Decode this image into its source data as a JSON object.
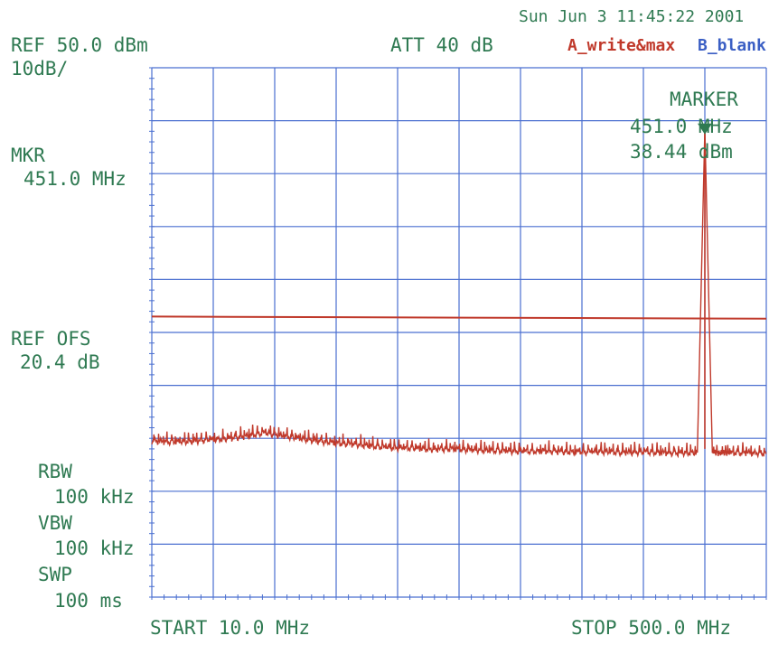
{
  "header": {
    "timestamp": "Sun Jun  3 11:45:22 2001",
    "ref_level": "REF 50.0 dBm",
    "scale": "10dB/",
    "attenuation": "ATT 40 dB",
    "trace_a": "A_write&max",
    "trace_b": "B_blank"
  },
  "left_panel": {
    "mkr_label": "MKR",
    "mkr_value": "451.0 MHz",
    "ref_ofs_label": "REF OFS",
    "ref_ofs_value": "20.4 dB",
    "rbw_label": "RBW",
    "rbw_value": "100 kHz",
    "vbw_label": "VBW",
    "vbw_value": "100 kHz",
    "swp_label": "SWP",
    "swp_value": "100 ms"
  },
  "marker_box": {
    "title": "MARKER",
    "freq": "451.0 MHz",
    "level": "38.44 dBm"
  },
  "footer": {
    "start": "START 10.0 MHz",
    "stop": "STOP 500.0 MHz"
  },
  "colors": {
    "text": "#2f7a52",
    "grid": "#4a6fd0",
    "trace": "#c0392b",
    "marker": "#2f7a52"
  },
  "chart_data": {
    "type": "line",
    "x_unit": "MHz",
    "y_unit": "dBm",
    "xlim": [
      10.0,
      500.0
    ],
    "ylim": [
      -50.0,
      50.0
    ],
    "grid": true,
    "divisions": {
      "x": 10,
      "y": 10
    },
    "series": [
      {
        "name": "A_write&max",
        "kind": "limit",
        "points": [
          [
            10.0,
            3.0
          ],
          [
            500.0,
            2.6
          ]
        ]
      },
      {
        "name": "A_write&max",
        "kind": "spectrum",
        "points": [
          [
            10,
            -20.5
          ],
          [
            25,
            -20.7
          ],
          [
            40,
            -20.6
          ],
          [
            55,
            -20.3
          ],
          [
            70,
            -20.1
          ],
          [
            85,
            -19.6
          ],
          [
            100,
            -19.0
          ],
          [
            115,
            -19.6
          ],
          [
            130,
            -20.1
          ],
          [
            145,
            -20.6
          ],
          [
            160,
            -21.0
          ],
          [
            175,
            -21.2
          ],
          [
            190,
            -21.6
          ],
          [
            205,
            -21.8
          ],
          [
            220,
            -21.9
          ],
          [
            235,
            -22.1
          ],
          [
            250,
            -22.0
          ],
          [
            265,
            -22.2
          ],
          [
            280,
            -22.3
          ],
          [
            295,
            -22.4
          ],
          [
            310,
            -22.5
          ],
          [
            325,
            -22.4
          ],
          [
            340,
            -22.6
          ],
          [
            355,
            -22.6
          ],
          [
            370,
            -22.5
          ],
          [
            385,
            -22.7
          ],
          [
            400,
            -22.6
          ],
          [
            415,
            -22.7
          ],
          [
            430,
            -22.8
          ],
          [
            445,
            -22.7
          ],
          [
            451,
            38.44
          ],
          [
            457,
            -22.7
          ],
          [
            470,
            -22.8
          ],
          [
            485,
            -22.7
          ],
          [
            500,
            -22.9
          ]
        ]
      }
    ],
    "marker": {
      "x": 451.0,
      "y": 38.44
    }
  }
}
